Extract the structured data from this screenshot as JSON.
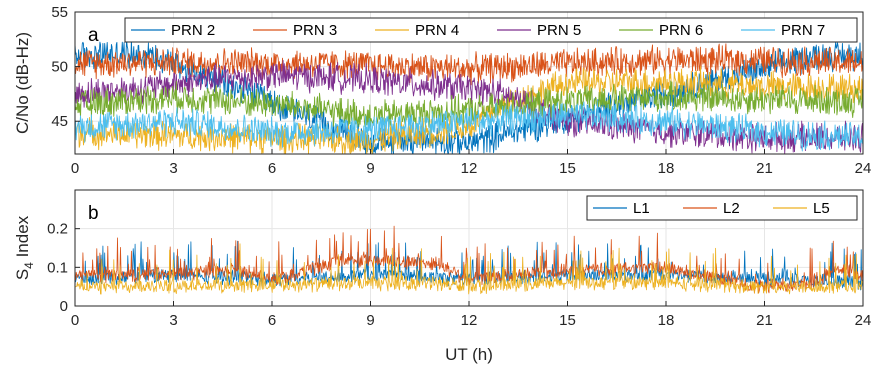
{
  "chart_data": [
    {
      "type": "line",
      "panel_label": "a",
      "xlabel": "",
      "ylabel": "C/No (dB-Hz)",
      "xlim": [
        0,
        24
      ],
      "ylim": [
        42,
        55
      ],
      "xticks": [
        "0",
        "3",
        "6",
        "9",
        "12",
        "15",
        "18",
        "21",
        "24"
      ],
      "yticks": [
        "45",
        "50",
        "55"
      ],
      "grid": true,
      "legend_position": "top (horizontal)",
      "series": [
        {
          "name": "PRN 2",
          "color": "#0072BD",
          "x": [
            0,
            1.5,
            2.5,
            9,
            10,
            11,
            12,
            22.5,
            23.5,
            24
          ],
          "y": [
            51.0,
            51.2,
            51.0,
            43.0,
            43.3,
            43.3,
            43.0,
            51.0,
            51.0,
            51.2
          ]
        },
        {
          "name": "PRN 3",
          "color": "#D95319",
          "x": [
            0,
            2,
            4,
            6,
            8,
            10,
            12,
            14,
            16,
            18,
            20,
            22,
            24
          ],
          "y": [
            50.3,
            50.4,
            50.4,
            50.3,
            50.2,
            50.0,
            49.8,
            50.1,
            50.4,
            50.6,
            50.6,
            50.5,
            50.3
          ]
        },
        {
          "name": "PRN 4",
          "color": "#EDB120",
          "x": [
            0,
            3,
            6,
            9,
            12,
            13,
            15,
            18,
            21,
            24
          ],
          "y": [
            44.0,
            43.7,
            43.4,
            43.3,
            44.5,
            46.5,
            48.5,
            48.6,
            48.2,
            48.0
          ]
        },
        {
          "name": "PRN 5",
          "color": "#7E2F8E",
          "x": [
            0,
            2,
            4,
            6,
            8,
            10,
            12,
            13,
            15,
            18,
            21,
            24
          ],
          "y": [
            47.5,
            48.0,
            48.8,
            49.2,
            49.0,
            48.5,
            48.0,
            47.5,
            45.0,
            44.0,
            43.5,
            43.5
          ]
        },
        {
          "name": "PRN 6",
          "color": "#77AC30",
          "x": [
            0,
            3,
            6,
            9,
            12,
            15,
            18,
            21,
            24
          ],
          "y": [
            46.5,
            47.2,
            46.6,
            45.5,
            46.0,
            46.8,
            47.2,
            47.0,
            46.8
          ]
        },
        {
          "name": "PRN 7",
          "color": "#4DBEEE",
          "x": [
            0,
            3,
            6,
            9,
            12,
            15,
            18,
            21,
            24
          ],
          "y": [
            44.5,
            45.0,
            44.0,
            44.2,
            45.0,
            45.5,
            45.0,
            44.0,
            43.5
          ]
        }
      ]
    },
    {
      "type": "line",
      "panel_label": "b",
      "xlabel": "UT (h)",
      "ylabel": "S4 Index",
      "ylabel_main": "S",
      "ylabel_sub": "4",
      "ylabel_rest": " Index",
      "xlim": [
        0,
        24
      ],
      "ylim": [
        0,
        0.3
      ],
      "xticks": [
        "0",
        "3",
        "6",
        "9",
        "12",
        "15",
        "18",
        "21",
        "24"
      ],
      "yticks": [
        "0",
        "0.1",
        "0.2"
      ],
      "grid": true,
      "legend_position": "top-right (horizontal)",
      "series": [
        {
          "name": "L1",
          "color": "#0072BD",
          "x": [
            0,
            3,
            6,
            9,
            12,
            15,
            18,
            21,
            24
          ],
          "y": [
            0.07,
            0.08,
            0.07,
            0.08,
            0.07,
            0.08,
            0.08,
            0.07,
            0.06
          ]
        },
        {
          "name": "L2",
          "color": "#D95319",
          "x": [
            0,
            1.5,
            5.3,
            6,
            7,
            8.2,
            11,
            12,
            15,
            18,
            20.8,
            22.5,
            23.2,
            24
          ],
          "y": [
            0.08,
            0.08,
            0.09,
            0.07,
            0.09,
            0.12,
            0.11,
            0.07,
            0.09,
            0.1,
            0.05,
            0.06,
            0.1,
            0.08
          ]
        },
        {
          "name": "L5",
          "color": "#EDB120",
          "x": [
            0,
            1.5,
            11,
            12,
            15,
            18,
            21,
            24
          ],
          "y": [
            0.05,
            0.05,
            0.06,
            0.05,
            0.06,
            0.06,
            0.05,
            0.05
          ]
        }
      ]
    }
  ]
}
